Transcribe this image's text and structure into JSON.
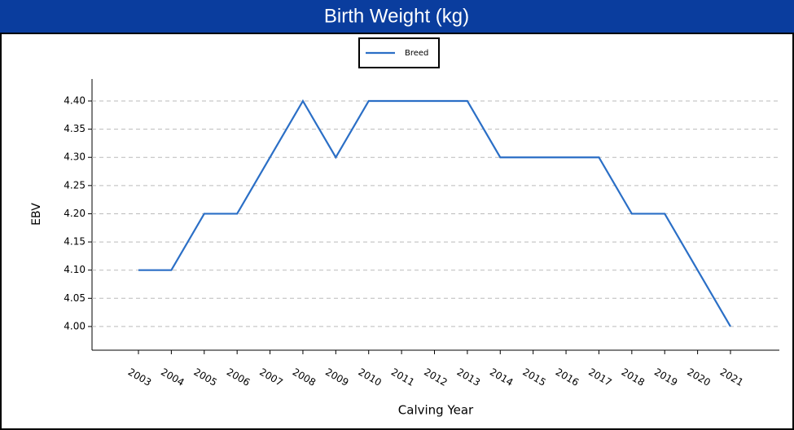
{
  "chart_data": {
    "type": "line",
    "title": "Birth Weight (kg)",
    "x_label": "Calving Year",
    "y_label": "EBV",
    "categories": [
      "2003",
      "2004",
      "2005",
      "2006",
      "2007",
      "2008",
      "2009",
      "2010",
      "2011",
      "2012",
      "2013",
      "2014",
      "2015",
      "2016",
      "2017",
      "2018",
      "2019",
      "2020",
      "2021"
    ],
    "series": [
      {
        "name": "Breed",
        "color": "#2b6fc6",
        "values": [
          4.1,
          4.1,
          4.2,
          4.2,
          4.3,
          4.4,
          4.3,
          4.4,
          4.4,
          4.4,
          4.4,
          4.3,
          4.3,
          4.3,
          4.3,
          4.2,
          4.2,
          4.1,
          4.0
        ]
      }
    ],
    "ylim": [
      3.958,
      4.439
    ],
    "yticks": [
      {
        "value": 4.0,
        "label": "4.00"
      },
      4.05,
      {
        "value": 4.1,
        "label": "4.10"
      },
      4.15,
      {
        "value": 4.2,
        "label": "4.20"
      },
      4.25,
      {
        "value": 4.3,
        "label": "4.30"
      },
      4.35,
      {
        "value": 4.4,
        "label": "4.40"
      }
    ],
    "grid": true,
    "legend": "top"
  }
}
